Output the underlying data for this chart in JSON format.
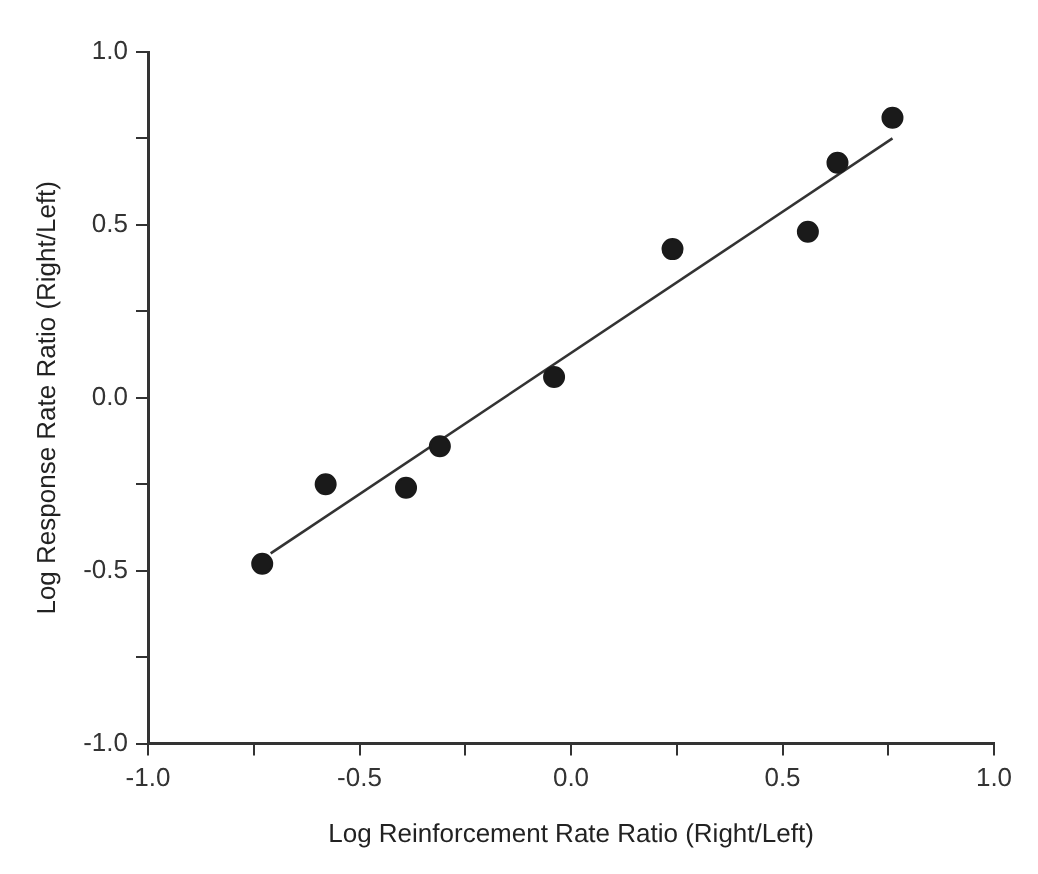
{
  "chart_data": {
    "type": "scatter",
    "xlabel": "Log Reinforcement Rate Ratio (Right/Left)",
    "ylabel": "Log Response Rate Ratio (Right/Left)",
    "xlim": [
      -1.0,
      1.0
    ],
    "ylim": [
      -1.0,
      1.0
    ],
    "xticks": [
      {
        "value": -1.0,
        "label": "-1.0"
      },
      {
        "value": -0.75,
        "label": null
      },
      {
        "value": -0.5,
        "label": "-0.5"
      },
      {
        "value": -0.25,
        "label": null
      },
      {
        "value": 0,
        "label": "0.0"
      },
      {
        "value": 0.25,
        "label": null
      },
      {
        "value": 0.5,
        "label": "0.5"
      },
      {
        "value": 0.75,
        "label": null
      },
      {
        "value": 1.0,
        "label": "1.0"
      }
    ],
    "yticks": [
      {
        "value": -1.0,
        "label": "-1.0"
      },
      {
        "value": -0.75,
        "label": null
      },
      {
        "value": -0.5,
        "label": "-0.5"
      },
      {
        "value": -0.25,
        "label": null
      },
      {
        "value": 0,
        "label": "0.0"
      },
      {
        "value": 0.25,
        "label": null
      },
      {
        "value": 0.5,
        "label": "0.5"
      },
      {
        "value": 0.75,
        "label": null
      },
      {
        "value": 1.0,
        "label": "1.0"
      }
    ],
    "line_style": "solid",
    "series": [
      {
        "type": "scatter",
        "marker": "circle",
        "color": "#1a1a1a",
        "x": [
          -0.73,
          -0.58,
          -0.39,
          -0.31,
          -0.04,
          0.24,
          0.56,
          0.63,
          0.76
        ],
        "values": [
          -0.48,
          -0.25,
          -0.26,
          -0.14,
          0.06,
          0.43,
          0.48,
          0.68,
          0.81
        ]
      },
      {
        "type": "line",
        "marker": "none",
        "color": "#333333",
        "x": [
          -0.71,
          0.76
        ],
        "values": [
          -0.45,
          0.75
        ]
      }
    ]
  }
}
